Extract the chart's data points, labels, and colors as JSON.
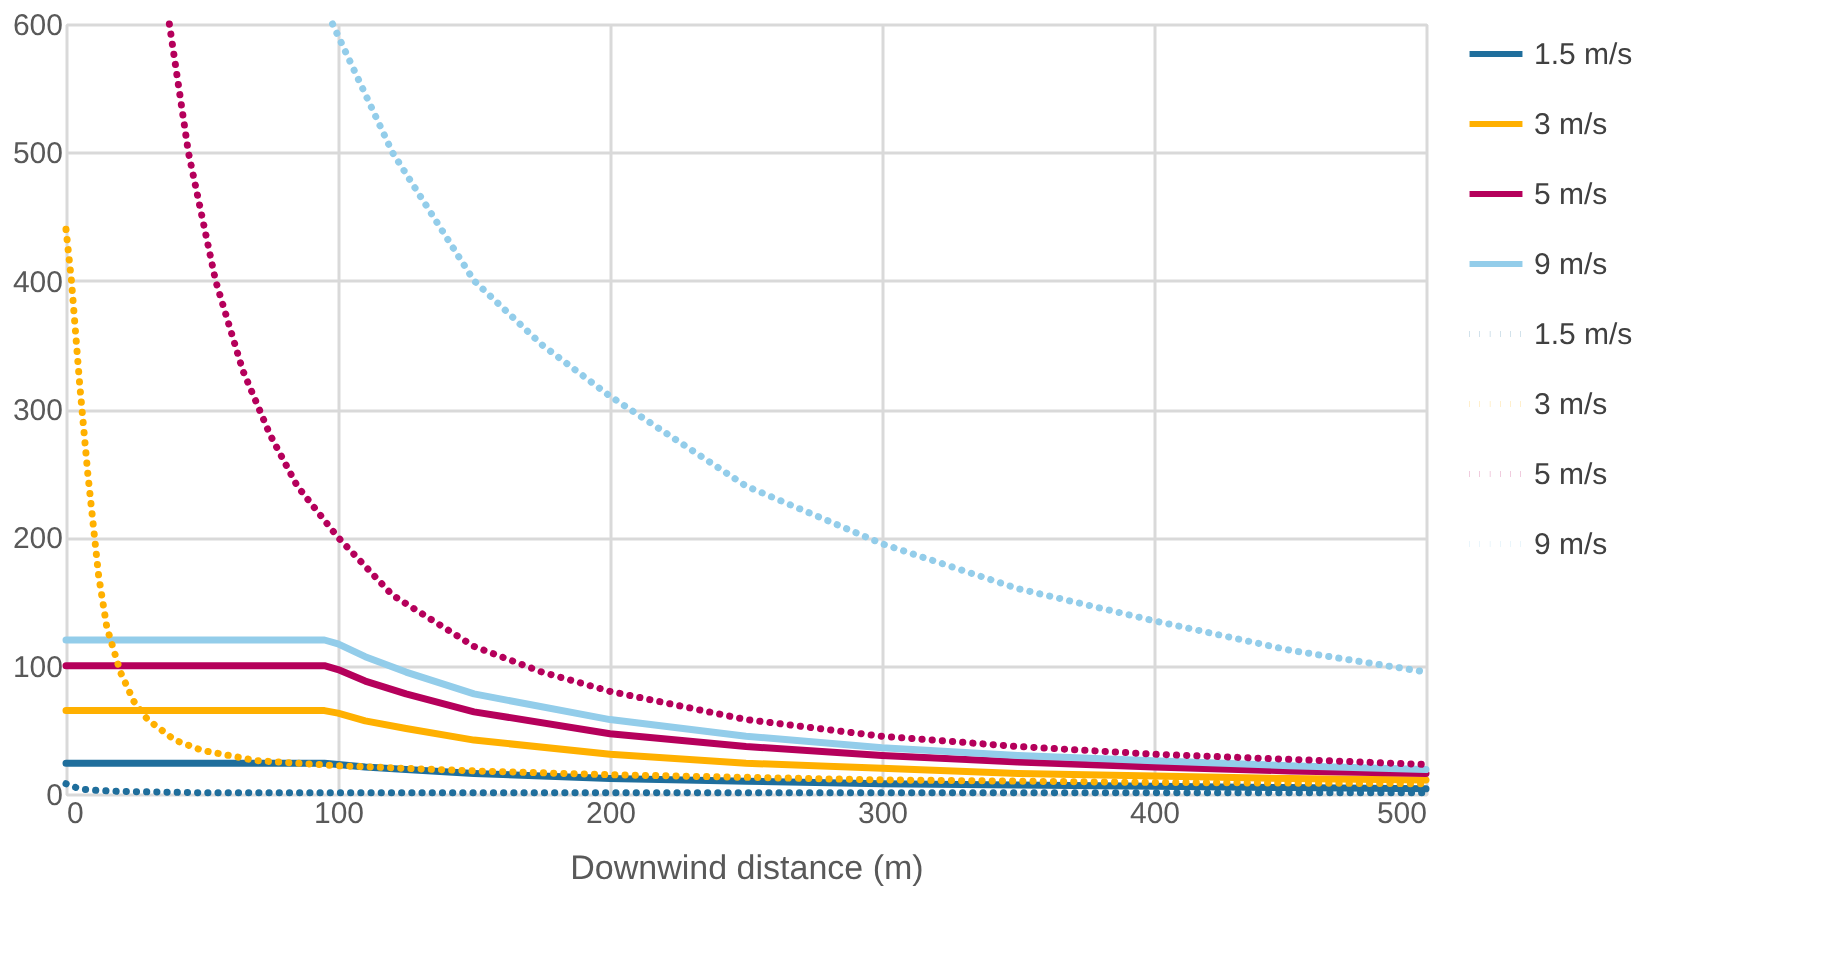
{
  "chart_data": {
    "type": "line",
    "xlabel": "Downwind distance (m)",
    "xlim": [
      0,
      500
    ],
    "xticks": [
      0,
      100,
      200,
      300,
      400,
      500
    ],
    "ylim": [
      0,
      600
    ],
    "yticks": [
      0,
      100,
      200,
      300,
      400,
      500,
      600
    ],
    "grid": true,
    "legend": "right",
    "marker": "none",
    "series": [
      {
        "name": "1.5 m/s",
        "color": "#1f6e9c",
        "line_style": "solid",
        "x": [
          0,
          50,
          95,
          100,
          110,
          125,
          150,
          200,
          250,
          300,
          350,
          400,
          450,
          500
        ],
        "values": [
          24,
          24,
          24,
          23,
          21,
          19,
          16,
          12,
          10,
          8,
          7,
          6,
          5,
          4
        ]
      },
      {
        "name": "3 m/s",
        "color": "#ffb000",
        "line_style": "solid",
        "x": [
          0,
          50,
          95,
          100,
          110,
          125,
          150,
          200,
          250,
          300,
          350,
          400,
          450,
          500
        ],
        "values": [
          65,
          65,
          65,
          63,
          57,
          51,
          42,
          31,
          24,
          20,
          16,
          14,
          12,
          11
        ]
      },
      {
        "name": "5 m/s",
        "color": "#b5005b",
        "line_style": "solid",
        "x": [
          0,
          50,
          95,
          100,
          110,
          125,
          150,
          200,
          250,
          300,
          350,
          400,
          450,
          500
        ],
        "values": [
          100,
          100,
          100,
          97,
          88,
          78,
          64,
          47,
          37,
          30,
          25,
          21,
          18,
          16
        ]
      },
      {
        "name": "9 m/s",
        "color": "#93cdea",
        "line_style": "solid",
        "x": [
          0,
          50,
          95,
          100,
          110,
          125,
          150,
          200,
          250,
          300,
          350,
          400,
          450,
          500
        ],
        "values": [
          120,
          120,
          120,
          117,
          107,
          95,
          78,
          58,
          45,
          36,
          30,
          26,
          22,
          19
        ]
      },
      {
        "name": "1.5 m/s",
        "color": "#1f6e9c",
        "line_style": "dotted",
        "x": [
          0,
          5,
          10,
          20,
          50,
          100,
          200,
          300,
          400,
          500
        ],
        "values": [
          8,
          4,
          3,
          2,
          1,
          1,
          1,
          1,
          1,
          1
        ]
      },
      {
        "name": "3 m/s",
        "color": "#ffb000",
        "line_style": "dotted",
        "x": [
          0,
          2,
          5,
          8,
          12,
          15,
          20,
          25,
          30,
          40,
          50,
          70,
          100,
          150,
          200,
          300,
          400,
          500
        ],
        "values": [
          440,
          400,
          320,
          250,
          170,
          130,
          95,
          72,
          58,
          42,
          34,
          26,
          22,
          18,
          15,
          11,
          9,
          8
        ]
      },
      {
        "name": "5 m/s",
        "color": "#b5005b",
        "line_style": "dotted",
        "x": [
          38,
          45,
          55,
          65,
          75,
          85,
          100,
          120,
          150,
          175,
          200,
          250,
          300,
          350,
          400,
          450,
          500
        ],
        "values": [
          600,
          500,
          400,
          330,
          280,
          240,
          200,
          155,
          115,
          95,
          80,
          58,
          45,
          37,
          31,
          27,
          23
        ]
      },
      {
        "name": "9 m/s",
        "color": "#93cdea",
        "line_style": "dotted",
        "x": [
          98,
          120,
          150,
          175,
          200,
          250,
          300,
          350,
          400,
          450,
          500
        ],
        "values": [
          600,
          500,
          400,
          350,
          310,
          240,
          195,
          160,
          135,
          112,
          95
        ]
      }
    ]
  }
}
